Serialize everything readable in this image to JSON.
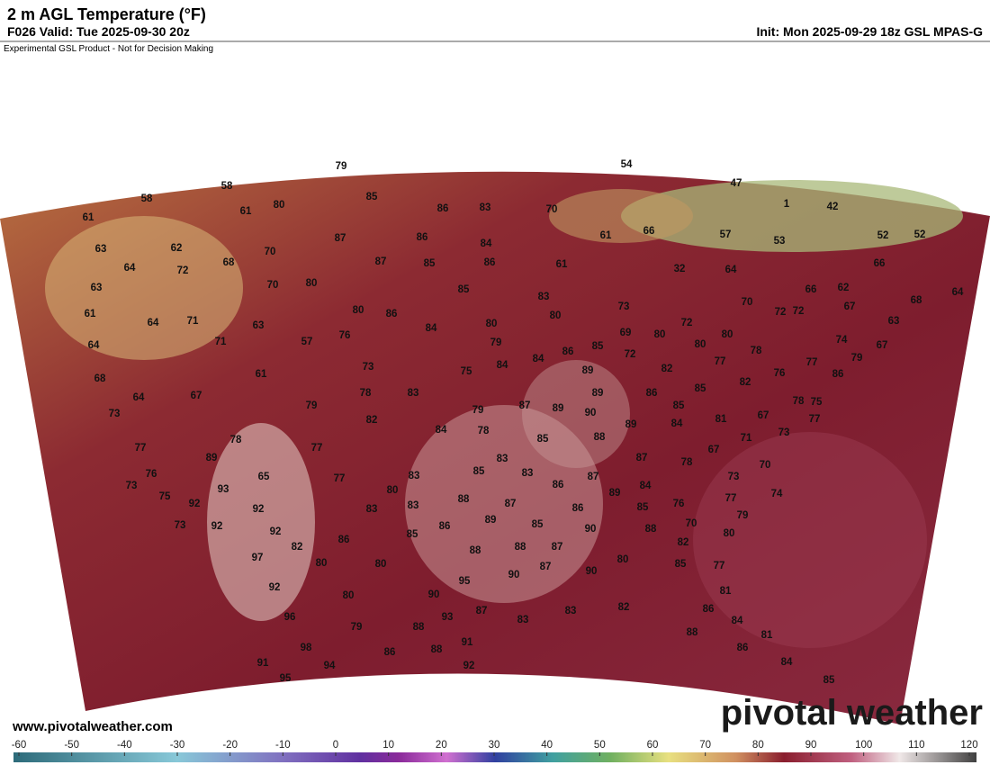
{
  "header": {
    "title": "2 m AGL Temperature (°F)",
    "valid": "F026 Valid: Tue 2025-09-30 20z",
    "init": "Init: Mon 2025-09-29 18z GSL MPAS-G",
    "disclaimer": "Experimental GSL Product - Not for Decision Making"
  },
  "footer": {
    "website": "www.pivotalweather.com",
    "brand": "pivotal weather"
  },
  "colorbar": {
    "ticks": [
      -60,
      -50,
      -40,
      -30,
      -20,
      -10,
      0,
      10,
      20,
      30,
      40,
      50,
      60,
      70,
      80,
      90,
      100,
      110,
      120
    ]
  },
  "stations": {
    "values": [
      79,
      54,
      58,
      58,
      80,
      85,
      86,
      83,
      70,
      61,
      61,
      47,
      1,
      42,
      87,
      86,
      84,
      61,
      66,
      57,
      53,
      52,
      52,
      63,
      62,
      68,
      70,
      87,
      85,
      86,
      61,
      32,
      64,
      66,
      64,
      72,
      63,
      70,
      80,
      85,
      83,
      66,
      62,
      68,
      64,
      61,
      64,
      71,
      63,
      80,
      86,
      80,
      80,
      73,
      70,
      72,
      72,
      67,
      63,
      57,
      76,
      84,
      71,
      64,
      79,
      86,
      85,
      69,
      80,
      72,
      80,
      80,
      78,
      74,
      67,
      84,
      84,
      72,
      75,
      73,
      61,
      89,
      82,
      77,
      76,
      77,
      86,
      79,
      68,
      64,
      67,
      78,
      83,
      89,
      86,
      85,
      82,
      78,
      75,
      73,
      79,
      82,
      79,
      87,
      89,
      90,
      85,
      67,
      77,
      84,
      78,
      89,
      84,
      81,
      73,
      85,
      88,
      71,
      78,
      77,
      89,
      77,
      67,
      83,
      87,
      78,
      70,
      85,
      83,
      83,
      65,
      73,
      76,
      73,
      77,
      87,
      86,
      84,
      80,
      89,
      93,
      76,
      77,
      74,
      75,
      92,
      92,
      88,
      87,
      83,
      83,
      85,
      79,
      89,
      86,
      73,
      92,
      92,
      85,
      90,
      86,
      70,
      85,
      88,
      80,
      86,
      82,
      82,
      87,
      88,
      88,
      97,
      80,
      80,
      87,
      80,
      85,
      77,
      90,
      90,
      95,
      92,
      80,
      90,
      81,
      83,
      83,
      82,
      96,
      93,
      87,
      86,
      84,
      79,
      88,
      88,
      81,
      98,
      91,
      88,
      86,
      86,
      91,
      94,
      92,
      84,
      95,
      85
    ]
  }
}
